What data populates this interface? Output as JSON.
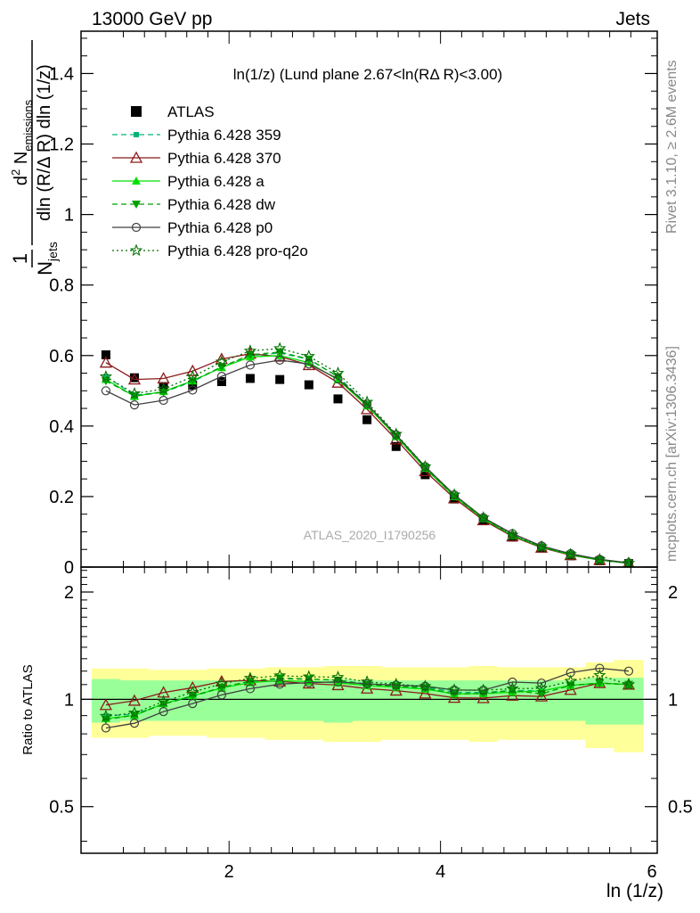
{
  "header": {
    "left": "13000 GeV pp",
    "right": "Jets"
  },
  "side_labels": {
    "rivet": "Rivet 3.1.10, ≥ 2.6M events",
    "mcplots": "mcplots.cern.ch [arXiv:1306.3436]"
  },
  "chart_data": [
    {
      "type": "scatter",
      "panel": "main",
      "title": "ln(1/z) (Lund plane 2.67<ln(RΔ R)<3.00)",
      "ylabel": "1/N_jets d²N_emissions / dln(R/ΔR) dln(1/z)",
      "xlabel": "ln (1/z)",
      "watermark": "ATLAS_2020_I1790256",
      "xlim": [
        0.6,
        6.05
      ],
      "ylim": [
        0,
        1.52
      ],
      "yticks": [
        0,
        0.2,
        0.4,
        0.6,
        0.8,
        1,
        1.2,
        1.4
      ],
      "ytick_labels": [
        "0",
        "0.2",
        "0.4",
        "0.6",
        "0.8",
        "1",
        "1.2",
        "1.4"
      ],
      "x": [
        0.835,
        1.105,
        1.38,
        1.655,
        1.93,
        2.2,
        2.48,
        2.755,
        3.03,
        3.305,
        3.58,
        3.855,
        4.13,
        4.405,
        4.68,
        4.955,
        5.23,
        5.505,
        5.78
      ],
      "legend_position": "top-left",
      "series": [
        {
          "name": "ATLAS",
          "color": "#000000",
          "marker": "square",
          "line": "none",
          "values": [
            0.602,
            0.537,
            0.512,
            0.516,
            0.526,
            0.535,
            0.532,
            0.517,
            0.477,
            0.418,
            0.342,
            0.262,
            0.193,
            0.132,
            0.085,
            0.054,
            0.032,
            0.018,
            0.01
          ]
        },
        {
          "name": "Pythia 6.428 359",
          "color": "#00b37a",
          "marker": "square-small",
          "line": "dashed",
          "values": [
            0.54,
            0.488,
            0.496,
            0.526,
            0.567,
            0.6,
            0.607,
            0.589,
            0.54,
            0.462,
            0.372,
            0.284,
            0.202,
            0.138,
            0.09,
            0.057,
            0.035,
            0.02,
            0.011
          ]
        },
        {
          "name": "Pythia 6.428 370",
          "color": "#8b1a1a",
          "marker": "triangle-open",
          "line": "solid",
          "values": [
            0.58,
            0.532,
            0.535,
            0.556,
            0.59,
            0.605,
            0.597,
            0.573,
            0.523,
            0.448,
            0.362,
            0.272,
            0.195,
            0.133,
            0.087,
            0.055,
            0.034,
            0.02,
            0.011
          ]
        },
        {
          "name": "Pythia 6.428 a",
          "color": "#00e000",
          "marker": "triangle-filled",
          "line": "solid",
          "values": [
            0.532,
            0.484,
            0.498,
            0.528,
            0.566,
            0.596,
            0.6,
            0.58,
            0.531,
            0.457,
            0.37,
            0.28,
            0.2,
            0.137,
            0.089,
            0.057,
            0.035,
            0.02,
            0.011
          ]
        },
        {
          "name": "Pythia 6.428 dw",
          "color": "#00a000",
          "marker": "triangle-down",
          "line": "dashed",
          "values": [
            0.528,
            0.485,
            0.496,
            0.528,
            0.568,
            0.602,
            0.61,
            0.59,
            0.54,
            0.46,
            0.372,
            0.282,
            0.2,
            0.137,
            0.09,
            0.056,
            0.035,
            0.02,
            0.011
          ]
        },
        {
          "name": "Pythia 6.428 p0",
          "color": "#404040",
          "marker": "circle-open",
          "line": "solid",
          "values": [
            0.5,
            0.46,
            0.473,
            0.502,
            0.541,
            0.573,
            0.587,
            0.576,
            0.534,
            0.462,
            0.375,
            0.285,
            0.205,
            0.14,
            0.095,
            0.06,
            0.038,
            0.022,
            0.012
          ]
        },
        {
          "name": "Pythia 6.428 pro-q2o",
          "color": "#007000",
          "marker": "star-open",
          "line": "dotted",
          "values": [
            0.54,
            0.492,
            0.505,
            0.54,
            0.582,
            0.613,
            0.62,
            0.598,
            0.55,
            0.468,
            0.377,
            0.285,
            0.205,
            0.14,
            0.091,
            0.058,
            0.036,
            0.021,
            0.011
          ]
        }
      ]
    },
    {
      "type": "line",
      "panel": "ratio",
      "ylabel": "Ratio to ATLAS",
      "xlabel": "ln (1/z)",
      "xlim": [
        0.6,
        6.05
      ],
      "ylim": [
        0.37,
        2.35
      ],
      "yticks": [
        0.5,
        1,
        2
      ],
      "ytick_labels": [
        "0.5",
        "1",
        "2"
      ],
      "xticks": [
        2,
        4,
        6
      ],
      "xtick_labels": [
        "2",
        "4",
        "6"
      ],
      "bin_edges": [
        0.7,
        0.97,
        1.24,
        1.52,
        1.79,
        2.07,
        2.34,
        2.62,
        2.89,
        3.17,
        3.44,
        3.72,
        3.99,
        4.27,
        4.54,
        4.82,
        5.09,
        5.37,
        5.64,
        5.92
      ],
      "band_inner": [
        0.14,
        0.13,
        0.13,
        0.13,
        0.13,
        0.13,
        0.13,
        0.13,
        0.14,
        0.13,
        0.13,
        0.13,
        0.13,
        0.13,
        0.13,
        0.13,
        0.13,
        0.15,
        0.15
      ],
      "band_outer": [
        0.22,
        0.22,
        0.21,
        0.21,
        0.22,
        0.22,
        0.23,
        0.23,
        0.24,
        0.24,
        0.23,
        0.23,
        0.23,
        0.24,
        0.23,
        0.23,
        0.23,
        0.27,
        0.29
      ],
      "series": [
        {
          "name": "Pythia 6.428 359",
          "values": [
            0.897,
            0.909,
            0.969,
            1.019,
            1.078,
            1.121,
            1.141,
            1.139,
            1.132,
            1.105,
            1.088,
            1.084,
            1.047,
            1.045,
            1.059,
            1.056,
            1.094,
            1.111,
            1.1
          ]
        },
        {
          "name": "Pythia 6.428 370",
          "values": [
            0.964,
            0.991,
            1.045,
            1.078,
            1.122,
            1.131,
            1.122,
            1.108,
            1.096,
            1.072,
            1.058,
            1.038,
            1.01,
            1.008,
            1.024,
            1.019,
            1.063,
            1.111,
            1.1
          ]
        },
        {
          "name": "Pythia 6.428 a",
          "values": [
            0.884,
            0.901,
            0.973,
            1.023,
            1.076,
            1.114,
            1.128,
            1.122,
            1.113,
            1.093,
            1.082,
            1.069,
            1.036,
            1.038,
            1.047,
            1.056,
            1.094,
            1.111,
            1.1
          ]
        },
        {
          "name": "Pythia 6.428 dw",
          "values": [
            0.877,
            0.903,
            0.969,
            1.023,
            1.08,
            1.125,
            1.147,
            1.141,
            1.132,
            1.1,
            1.088,
            1.076,
            1.036,
            1.038,
            1.059,
            1.037,
            1.094,
            1.111,
            1.1
          ]
        },
        {
          "name": "Pythia 6.428 p0",
          "values": [
            0.831,
            0.857,
            0.924,
            0.973,
            1.029,
            1.071,
            1.103,
            1.114,
            1.119,
            1.105,
            1.096,
            1.088,
            1.062,
            1.061,
            1.118,
            1.111,
            1.188,
            1.222,
            1.2
          ]
        },
        {
          "name": "Pythia 6.428 pro-q2o",
          "values": [
            0.897,
            0.916,
            0.986,
            1.047,
            1.106,
            1.146,
            1.165,
            1.157,
            1.153,
            1.12,
            1.102,
            1.088,
            1.062,
            1.061,
            1.071,
            1.074,
            1.125,
            1.167,
            1.1
          ]
        }
      ]
    }
  ]
}
